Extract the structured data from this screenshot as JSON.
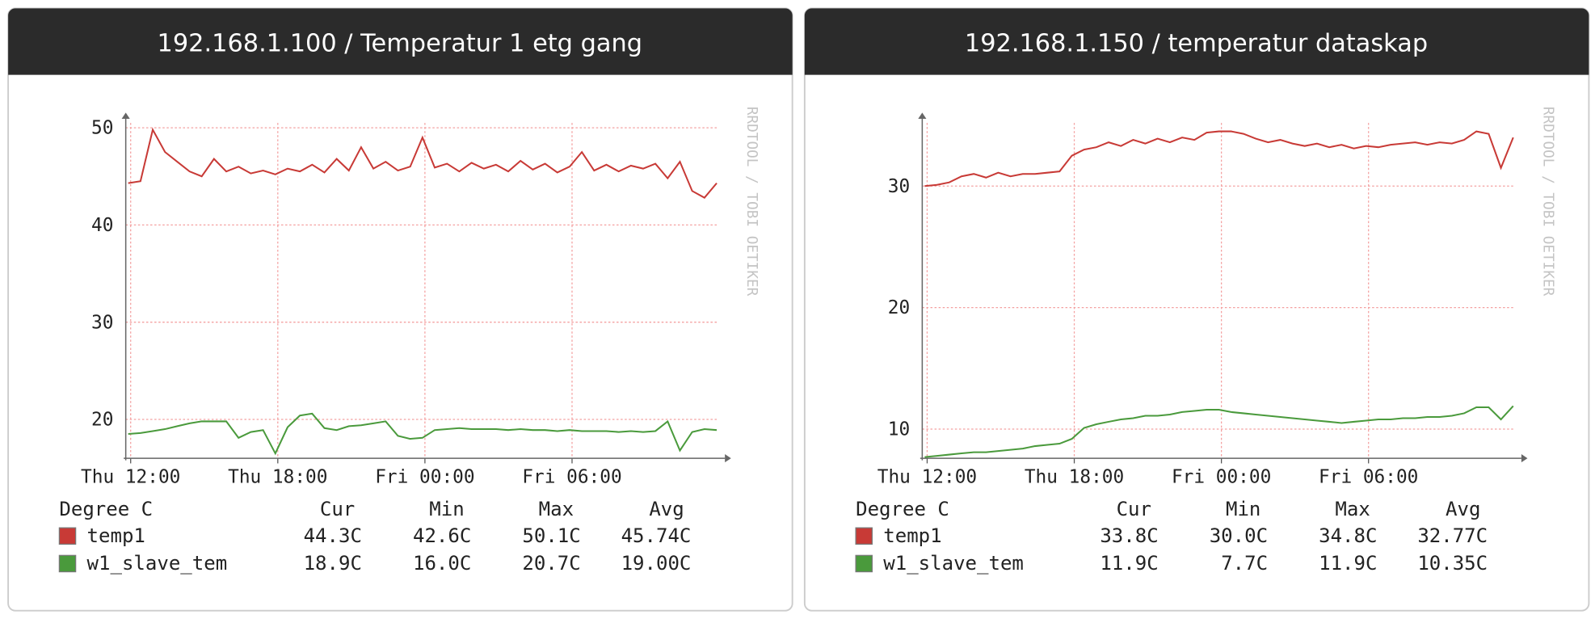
{
  "chart_data": [
    {
      "type": "line",
      "title": "192.168.1.100 / Temperatur 1 etg gang",
      "watermark": "RRDTOOL / TOBI OETIKER",
      "x": [
        11.9,
        12.4,
        12.9,
        13.4,
        13.9,
        14.4,
        14.9,
        15.4,
        15.9,
        16.4,
        16.9,
        17.4,
        17.9,
        18.4,
        18.9,
        19.4,
        19.9,
        20.4,
        20.9,
        21.4,
        21.9,
        22.4,
        22.9,
        23.4,
        23.9,
        24.4,
        24.9,
        25.4,
        25.9,
        26.4,
        26.9,
        27.4,
        27.9,
        28.4,
        28.9,
        29.4,
        29.9,
        30.4,
        30.9,
        31.4,
        31.9,
        32.4,
        32.9,
        33.4,
        33.9,
        34.4,
        34.9,
        35.4,
        35.9
      ],
      "xlim": [
        11.8,
        35.9
      ],
      "xticks": [
        {
          "value": 12,
          "label": "Thu 12:00"
        },
        {
          "value": 18,
          "label": "Thu 18:00"
        },
        {
          "value": 24,
          "label": "Fri 00:00"
        },
        {
          "value": 30,
          "label": "Fri 06:00"
        }
      ],
      "ylim": [
        16,
        50.5
      ],
      "yticks": [
        20,
        30,
        40,
        50
      ],
      "grid": true,
      "legend_title": "Degree C",
      "stats_header": [
        "Cur",
        "Min",
        "Max",
        "Avg"
      ],
      "series": [
        {
          "name": "temp1",
          "color": "#c83a36",
          "stats": [
            "44.3C",
            "42.6C",
            "50.1C",
            "45.74C"
          ],
          "values": [
            44.3,
            44.5,
            49.8,
            47.5,
            46.5,
            45.5,
            45,
            46.8,
            45.5,
            46,
            45.3,
            45.6,
            45.2,
            45.8,
            45.5,
            46.2,
            45.4,
            46.8,
            45.6,
            48,
            45.8,
            46.5,
            45.6,
            46,
            49,
            45.9,
            46.3,
            45.5,
            46.4,
            45.8,
            46.2,
            45.5,
            46.6,
            45.7,
            46.3,
            45.4,
            46,
            47.5,
            45.6,
            46.2,
            45.5,
            46.1,
            45.8,
            46.3,
            44.8,
            46.5,
            43.5,
            42.8,
            44.3
          ]
        },
        {
          "name": "w1_slave_tem",
          "color": "#4a9a3c",
          "stats": [
            "18.9C",
            "16.0C",
            "20.7C",
            "19.00C"
          ],
          "values": [
            18.5,
            18.6,
            18.8,
            19,
            19.3,
            19.6,
            19.8,
            19.8,
            19.8,
            18.1,
            18.7,
            18.9,
            16.5,
            19.2,
            20.4,
            20.6,
            19.1,
            18.9,
            19.3,
            19.4,
            19.6,
            19.8,
            18.3,
            18,
            18.1,
            18.9,
            19,
            19.1,
            19,
            19,
            19,
            18.9,
            19,
            18.9,
            18.9,
            18.8,
            18.9,
            18.8,
            18.8,
            18.8,
            18.7,
            18.8,
            18.7,
            18.8,
            19.8,
            16.8,
            18.7,
            19,
            18.9
          ]
        }
      ]
    },
    {
      "type": "line",
      "title": "192.168.1.150 / temperatur dataskap",
      "watermark": "RRDTOOL / TOBI OETIKER",
      "x": [
        11.9,
        12.4,
        12.9,
        13.4,
        13.9,
        14.4,
        14.9,
        15.4,
        15.9,
        16.4,
        16.9,
        17.4,
        17.9,
        18.4,
        18.9,
        19.4,
        19.9,
        20.4,
        20.9,
        21.4,
        21.9,
        22.4,
        22.9,
        23.4,
        23.9,
        24.4,
        24.9,
        25.4,
        25.9,
        26.4,
        26.9,
        27.4,
        27.9,
        28.4,
        28.9,
        29.4,
        29.9,
        30.4,
        30.9,
        31.4,
        31.9,
        32.4,
        32.9,
        33.4,
        33.9,
        34.4,
        34.9,
        35.4,
        35.9
      ],
      "xlim": [
        11.8,
        35.9
      ],
      "xticks": [
        {
          "value": 12,
          "label": "Thu 12:00"
        },
        {
          "value": 18,
          "label": "Thu 18:00"
        },
        {
          "value": 24,
          "label": "Fri 00:00"
        },
        {
          "value": 30,
          "label": "Fri 06:00"
        }
      ],
      "ylim": [
        7.6,
        35.2
      ],
      "yticks": [
        10,
        20,
        30
      ],
      "grid": true,
      "legend_title": "Degree C",
      "stats_header": [
        "Cur",
        "Min",
        "Max",
        "Avg"
      ],
      "series": [
        {
          "name": "temp1",
          "color": "#c83a36",
          "stats": [
            "33.8C",
            "30.0C",
            "34.8C",
            "32.77C"
          ],
          "values": [
            30,
            30.1,
            30.3,
            30.8,
            31,
            30.7,
            31.1,
            30.8,
            31,
            31,
            31.1,
            31.2,
            32.5,
            33,
            33.2,
            33.6,
            33.3,
            33.8,
            33.5,
            33.9,
            33.6,
            34,
            33.8,
            34.4,
            34.5,
            34.5,
            34.3,
            33.9,
            33.6,
            33.8,
            33.5,
            33.3,
            33.5,
            33.2,
            33.4,
            33.1,
            33.3,
            33.2,
            33.4,
            33.5,
            33.6,
            33.4,
            33.6,
            33.5,
            33.8,
            34.5,
            34.3,
            31.5,
            34
          ]
        },
        {
          "name": "w1_slave_tem",
          "color": "#4a9a3c",
          "stats": [
            "11.9C",
            "7.7C",
            "11.9C",
            "10.35C"
          ],
          "values": [
            7.7,
            7.8,
            7.9,
            8,
            8.1,
            8.1,
            8.2,
            8.3,
            8.4,
            8.6,
            8.7,
            8.8,
            9.2,
            10.1,
            10.4,
            10.6,
            10.8,
            10.9,
            11.1,
            11.1,
            11.2,
            11.4,
            11.5,
            11.6,
            11.6,
            11.4,
            11.3,
            11.2,
            11.1,
            11,
            10.9,
            10.8,
            10.7,
            10.6,
            10.5,
            10.6,
            10.7,
            10.8,
            10.8,
            10.9,
            10.9,
            11,
            11,
            11.1,
            11.3,
            11.8,
            11.8,
            10.8,
            11.9
          ]
        }
      ]
    }
  ]
}
